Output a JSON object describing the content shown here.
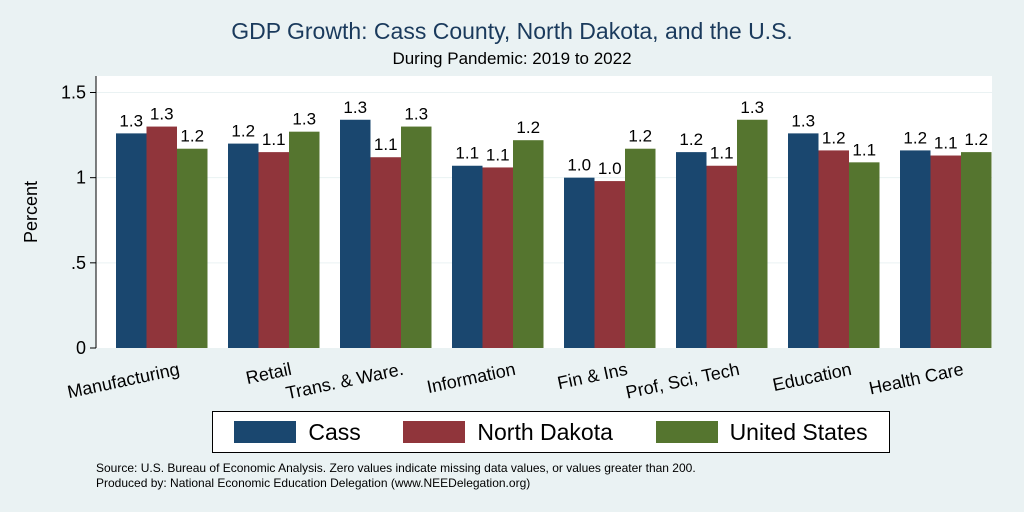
{
  "title": "GDP Growth: Cass County, North Dakota, and the U.S.",
  "subtitle": "During Pandemic: 2019 to 2022",
  "source_line": "Source: U.S. Bureau of Economic Analysis. Zero values indicate missing data values, or values greater than 200.",
  "produced_line": "Produced by: National Economic Education Delegation (www.NEEDelegation.org)",
  "chart_data": {
    "type": "bar",
    "title": "GDP Growth: Cass County, North Dakota, and the U.S.",
    "subtitle": "During Pandemic: 2019 to 2022",
    "xlabel": "",
    "ylabel": "Percent",
    "ylim": [
      0,
      1.6
    ],
    "yticks": [
      0,
      0.5,
      1,
      1.5
    ],
    "ytick_labels": [
      "0",
      ".5",
      "1",
      "1.5"
    ],
    "grid": true,
    "legend_position": "bottom",
    "categories": [
      "Manufacturing",
      "Retail",
      "Trans. & Ware.",
      "Information",
      "Fin & Ins",
      "Prof, Sci, Tech",
      "Education",
      "Health Care"
    ],
    "series": [
      {
        "name": "Cass",
        "color": "#1a476f",
        "values": [
          1.26,
          1.2,
          1.34,
          1.07,
          1.0,
          1.15,
          1.26,
          1.16
        ],
        "labels": [
          "1.3",
          "1.2",
          "1.3",
          "1.1",
          "1.0",
          "1.2",
          "1.3",
          "1.2"
        ]
      },
      {
        "name": "North Dakota",
        "color": "#90353b",
        "values": [
          1.3,
          1.15,
          1.12,
          1.06,
          0.98,
          1.07,
          1.16,
          1.13
        ],
        "labels": [
          "1.3",
          "1.1",
          "1.1",
          "1.1",
          "1.0",
          "1.1",
          "1.2",
          "1.1"
        ]
      },
      {
        "name": "United States",
        "color": "#55752f",
        "values": [
          1.17,
          1.27,
          1.3,
          1.22,
          1.17,
          1.34,
          1.09,
          1.15
        ],
        "labels": [
          "1.2",
          "1.3",
          "1.3",
          "1.2",
          "1.2",
          "1.3",
          "1.1",
          "1.2"
        ]
      }
    ]
  }
}
